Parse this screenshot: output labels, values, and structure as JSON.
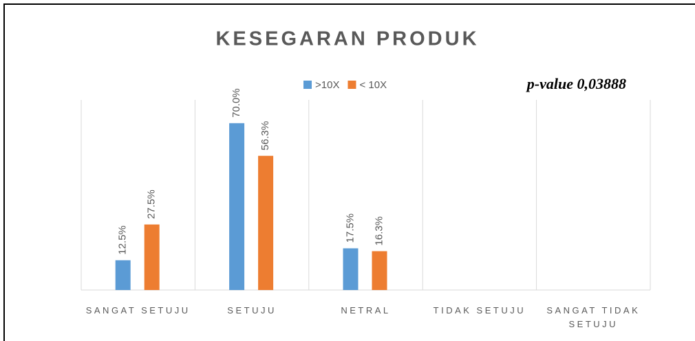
{
  "chart_data": {
    "type": "bar",
    "title": "KESEGARAN PRODUK",
    "annotation": "p-value 0,03888",
    "categories": [
      "SANGAT SETUJU",
      "SETUJU",
      "NETRAL",
      "TIDAK SETUJU",
      "SANGAT TIDAK SETUJU"
    ],
    "series": [
      {
        "name": ">10X",
        "color": "#5b9bd5",
        "values": [
          12.5,
          70.0,
          17.5,
          null,
          null
        ],
        "value_labels": [
          "12.5%",
          "70.0%",
          "17.5%",
          null,
          null
        ]
      },
      {
        "name": "< 10X",
        "color": "#ed7d31",
        "values": [
          27.5,
          56.3,
          16.3,
          null,
          null
        ],
        "value_labels": [
          "27.5%",
          "56.3%",
          "16.3%",
          null,
          null
        ]
      }
    ],
    "grid": true
  }
}
